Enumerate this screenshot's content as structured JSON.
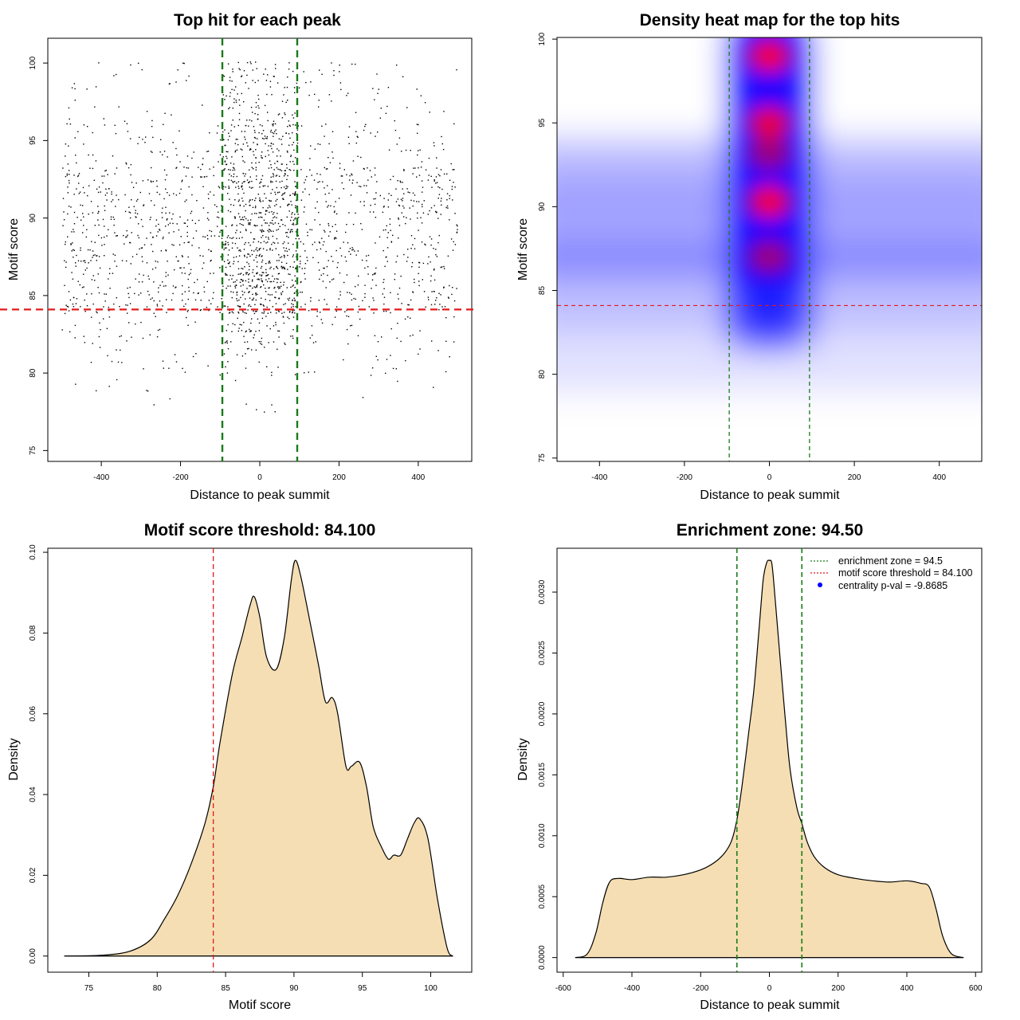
{
  "chart_data": [
    {
      "type": "scatter",
      "title": "Top hit for each peak",
      "xlabel": "Distance to peak summit",
      "ylabel": "Motif score",
      "xlim": [
        -535,
        535
      ],
      "ylim": [
        74.3,
        101.6
      ],
      "xticks": [
        -400,
        -200,
        0,
        200,
        400
      ],
      "yticks": [
        75,
        80,
        85,
        90,
        95,
        100
      ],
      "xtick_labels": [
        "-400",
        "-200",
        "0",
        "200",
        "400"
      ],
      "ytick_labels": [
        "75",
        "80",
        "85",
        "90",
        "95",
        "100"
      ],
      "points_description_x_range": [
        -500,
        500
      ],
      "threshold_line": {
        "y": 84.1,
        "color": "#e41a1c"
      },
      "zone_lines": {
        "x": [
          -94.5,
          94.5
        ],
        "color": "#1a7a1a"
      }
    },
    {
      "type": "heatmap",
      "title": "Density heat map for the top hits",
      "xlabel": "Distance to peak summit",
      "ylabel": "Motif score",
      "xlim": [
        -500,
        500
      ],
      "ylim": [
        74.8,
        100.1
      ],
      "xticks": [
        -400,
        -200,
        0,
        200,
        400
      ],
      "yticks": [
        75,
        80,
        85,
        90,
        95,
        100
      ],
      "xtick_labels": [
        "-400",
        "-200",
        "0",
        "200",
        "400"
      ],
      "ytick_labels": [
        "75",
        "80",
        "85",
        "90",
        "95",
        "100"
      ],
      "hotspots": [
        {
          "x": 0,
          "y": 99.0,
          "intensity": 1.0
        },
        {
          "x": 0,
          "y": 95.0,
          "intensity": 0.95
        },
        {
          "x": 0,
          "y": 93.2,
          "intensity": 0.6
        },
        {
          "x": 0,
          "y": 90.3,
          "intensity": 1.0
        },
        {
          "x": 0,
          "y": 87.0,
          "intensity": 0.6
        }
      ],
      "bands": [
        {
          "y": 87.0,
          "intensity": 0.55
        },
        {
          "y": 90.0,
          "intensity": 0.4
        },
        {
          "y": 92.5,
          "intensity": 0.25
        },
        {
          "y": 84.0,
          "intensity": 0.22
        }
      ],
      "threshold_line": {
        "y": 84.1,
        "color": "#e41a1c"
      },
      "zone_lines": {
        "x": [
          -94.5,
          94.5
        ],
        "color": "#1a7a1a"
      }
    },
    {
      "type": "area",
      "title": "Motif score threshold: 84.100",
      "xlabel": "Motif score",
      "ylabel": "Density",
      "xlim": [
        72,
        103
      ],
      "ylim": [
        -0.004,
        0.101
      ],
      "xticks": [
        75,
        80,
        85,
        90,
        95,
        100
      ],
      "yticks": [
        0.0,
        0.02,
        0.04,
        0.06,
        0.08,
        0.1
      ],
      "xtick_labels": [
        "75",
        "80",
        "85",
        "90",
        "95",
        "100"
      ],
      "ytick_labels": [
        "0.00",
        "0.02",
        "0.04",
        "0.06",
        "0.08",
        "0.10"
      ],
      "fill": "#f5deb3",
      "x": [
        73.2,
        76,
        78,
        79.5,
        80.5,
        81.5,
        82.5,
        83.5,
        84.1,
        84.6,
        85.5,
        86.2,
        86.8,
        87.1,
        87.5,
        88.0,
        88.7,
        89.3,
        89.8,
        90.1,
        90.5,
        91.1,
        91.8,
        92.3,
        92.8,
        93.2,
        93.8,
        94.2,
        94.8,
        95.3,
        95.8,
        96.4,
        96.9,
        97.3,
        97.8,
        98.3,
        98.8,
        99.2,
        99.8,
        100.5,
        101.2,
        101.6
      ],
      "y": [
        0.0,
        0.0002,
        0.0012,
        0.004,
        0.009,
        0.015,
        0.023,
        0.033,
        0.042,
        0.053,
        0.07,
        0.079,
        0.087,
        0.089,
        0.084,
        0.074,
        0.071,
        0.079,
        0.093,
        0.098,
        0.094,
        0.084,
        0.072,
        0.063,
        0.064,
        0.06,
        0.047,
        0.047,
        0.048,
        0.042,
        0.032,
        0.027,
        0.024,
        0.025,
        0.025,
        0.029,
        0.033,
        0.034,
        0.029,
        0.014,
        0.002,
        0.0
      ],
      "threshold_line": {
        "x": 84.1,
        "color": "#e41a1c"
      }
    },
    {
      "type": "area",
      "title": "Enrichment zone: 94.50",
      "xlabel": "Distance to peak summit",
      "ylabel": "Density",
      "xlim": [
        -618,
        618
      ],
      "ylim": [
        -0.00012,
        0.00336
      ],
      "xticks": [
        -600,
        -400,
        -200,
        0,
        200,
        400,
        600
      ],
      "yticks": [
        0.0,
        0.0005,
        0.001,
        0.0015,
        0.002,
        0.0025,
        0.003
      ],
      "xtick_labels": [
        "-600",
        "-400",
        "-200",
        "0",
        "200",
        "400",
        "600"
      ],
      "ytick_labels": [
        "0.0000",
        "0.0005",
        "0.0010",
        "0.0015",
        "0.0020",
        "0.0025",
        "0.0030"
      ],
      "fill": "#f5deb3",
      "x": [
        -565,
        -530,
        -505,
        -485,
        -465,
        -440,
        -400,
        -350,
        -300,
        -250,
        -200,
        -160,
        -130,
        -110,
        -94.5,
        -80,
        -60,
        -45,
        -30,
        -18,
        -8,
        0,
        8,
        18,
        30,
        45,
        60,
        80,
        94.5,
        110,
        130,
        160,
        200,
        250,
        300,
        350,
        400,
        440,
        465,
        485,
        505,
        530,
        565
      ],
      "y": [
        0.0,
        3e-05,
        0.0002,
        0.00045,
        0.00062,
        0.00065,
        0.00064,
        0.00066,
        0.00066,
        0.00068,
        0.00072,
        0.00078,
        0.00086,
        0.00096,
        0.00113,
        0.0014,
        0.00185,
        0.0022,
        0.0027,
        0.0031,
        0.00324,
        0.00326,
        0.00322,
        0.0029,
        0.0025,
        0.002,
        0.00155,
        0.00123,
        0.0011,
        0.00095,
        0.00083,
        0.00074,
        0.00068,
        0.00065,
        0.00063,
        0.00062,
        0.00063,
        0.00061,
        0.00058,
        0.0004,
        0.00017,
        3e-05,
        0.0
      ],
      "zone_lines": {
        "x": [
          -94.5,
          94.5
        ],
        "color": "#1a7a1a"
      },
      "legend": {
        "position": "top-right",
        "entries": [
          {
            "label": "enrichment zone = 94.5",
            "color": "#1a7a1a",
            "symbol": "dotted-line"
          },
          {
            "label": "motif score threshold = 84.100",
            "color": "#e41a1c",
            "symbol": "dotted-line"
          },
          {
            "label": "centrality p-val = -9.8685",
            "color": "#0000ff",
            "symbol": "point"
          }
        ]
      }
    }
  ]
}
